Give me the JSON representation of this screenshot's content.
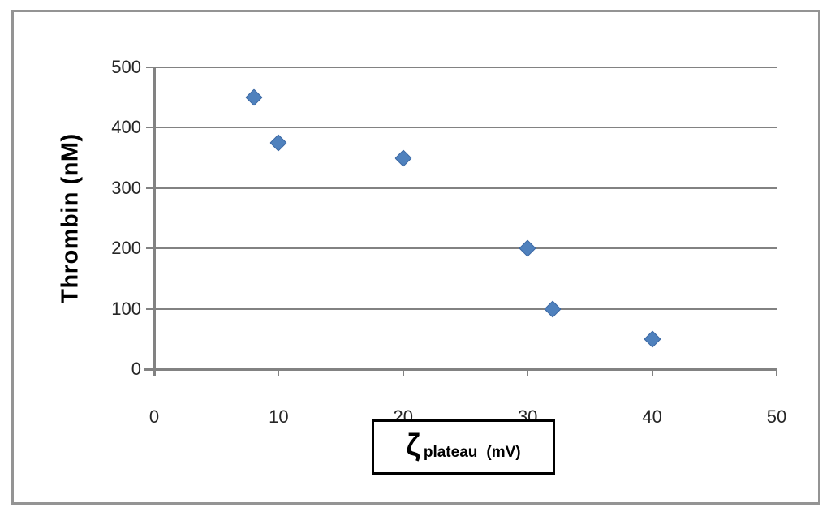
{
  "chart_data": {
    "type": "scatter",
    "title": "",
    "ylabel": "Thrombin (nM)",
    "xlabel": "ζ plateau (mV)",
    "xlabel_parts": {
      "symbol": "ζ",
      "subscript": "plateau",
      "units": "(mV)"
    },
    "xlim": [
      0,
      50
    ],
    "ylim": [
      0,
      500
    ],
    "xticks": [
      0,
      10,
      20,
      30,
      40,
      50
    ],
    "yticks": [
      0,
      100,
      200,
      300,
      400,
      500
    ],
    "grid": "horizontal-only",
    "legend_position": "none",
    "series": [
      {
        "name": "thrombin-vs-zeta-plateau",
        "marker": "diamond",
        "points": [
          {
            "x": 8,
            "y": 450
          },
          {
            "x": 10,
            "y": 375
          },
          {
            "x": 20,
            "y": 350
          },
          {
            "x": 30,
            "y": 200
          },
          {
            "x": 32,
            "y": 100
          },
          {
            "x": 40,
            "y": 50
          }
        ]
      }
    ],
    "colors": {
      "marker_fill": "#4F81BD",
      "marker_edge": "#3A67A3",
      "grid": "#828282",
      "axis": "#828282",
      "frame_border": "#949494",
      "tick_label": "#262626",
      "background": "#ffffff"
    }
  }
}
